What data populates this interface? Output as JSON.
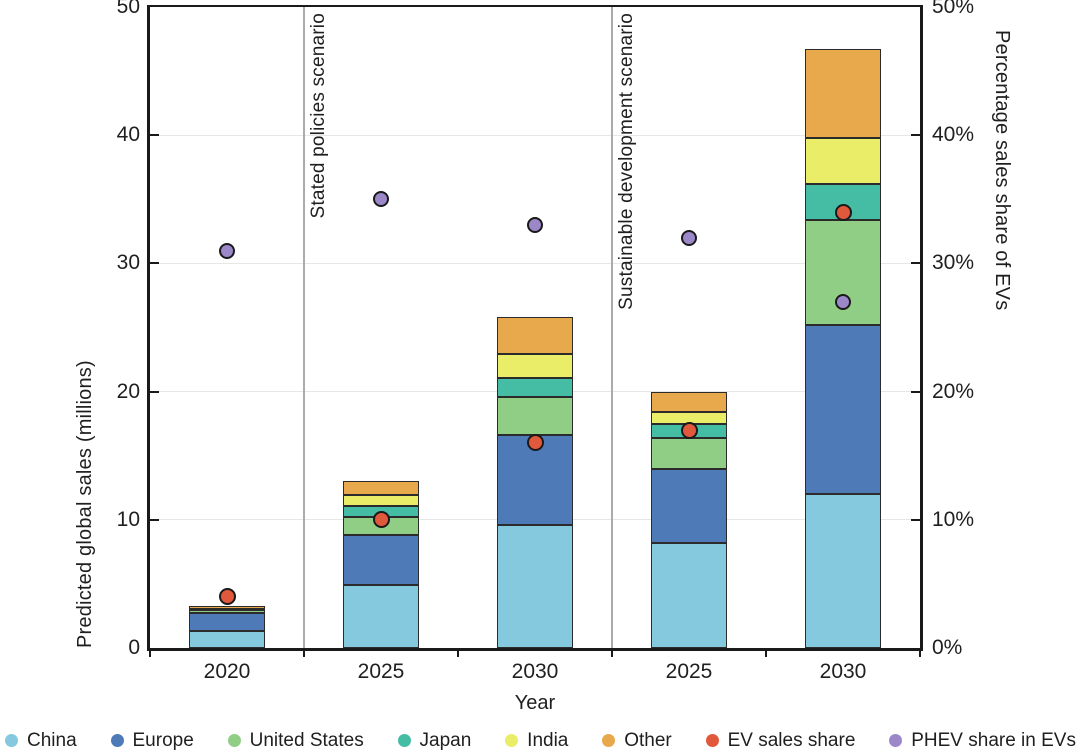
{
  "chart_data": {
    "type": "bar",
    "stacked": true,
    "xlabel": "Year",
    "categories": [
      "2020",
      "2025",
      "2030",
      "2025",
      "2030"
    ],
    "scenario_labels": [
      {
        "label": "Stated policies scenario",
        "after_category_index": 0
      },
      {
        "label": "Sustainable development scenario",
        "after_category_index": 2
      }
    ],
    "series": [
      {
        "name": "China",
        "color": "#85c9df",
        "values": [
          1.3,
          4.9,
          9.6,
          8.2,
          12.0
        ]
      },
      {
        "name": "Europe",
        "color": "#4e7bb8",
        "values": [
          1.4,
          3.9,
          7.0,
          5.8,
          13.2
        ]
      },
      {
        "name": "United States",
        "color": "#90ce85",
        "values": [
          0.25,
          1.4,
          3.0,
          2.4,
          8.2
        ]
      },
      {
        "name": "Japan",
        "color": "#45bca4",
        "values": [
          0.05,
          0.9,
          1.5,
          1.1,
          2.8
        ]
      },
      {
        "name": "India",
        "color": "#e9ed68",
        "values": [
          0.05,
          0.8,
          1.8,
          0.9,
          3.6
        ]
      },
      {
        "name": "Other",
        "color": "#e8a94c",
        "values": [
          0.2,
          1.1,
          2.9,
          1.6,
          6.9
        ]
      }
    ],
    "bar_totals": [
      3.25,
      13.0,
      25.8,
      20.0,
      46.7
    ],
    "points": [
      {
        "name": "EV sales share",
        "color": "#e0593d",
        "values_pct": [
          4,
          10,
          16,
          17,
          34
        ]
      },
      {
        "name": "PHEV share in EVs",
        "color": "#9c88c9",
        "values_pct": [
          31,
          35,
          33,
          32,
          27
        ]
      }
    ],
    "left_axis": {
      "label": "Predicted global sales (millions)",
      "ticks": [
        "0",
        "10",
        "20",
        "30",
        "40",
        "50"
      ],
      "min": 0,
      "max": 50
    },
    "right_axis": {
      "label": "Percentage sales share of EVs",
      "ticks": [
        "0%",
        "10%",
        "20%",
        "30%",
        "40%",
        "50%"
      ],
      "min": 0,
      "max": 50
    },
    "grid_values": [
      10,
      20,
      30,
      40
    ],
    "legend_position": "bottom",
    "colors": {
      "frame": "#1a1a1a",
      "gridline": "#e7e7e7",
      "scenario_separator": "#ababab",
      "segment_border": "#2b2b2b",
      "marker_border": "#1a1a1a",
      "background": "#ffffff"
    }
  }
}
